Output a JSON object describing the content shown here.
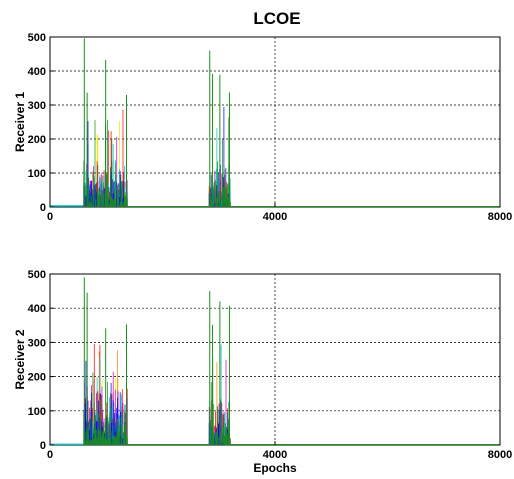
{
  "figure": {
    "title": "LCOE"
  },
  "series_colors": [
    "#1a8f1a",
    "#0000ff",
    "#ff0000",
    "#00bfbf",
    "#cc00cc",
    "#e8e800",
    "#ff8000",
    "#008000"
  ],
  "chart_data": [
    {
      "type": "line",
      "title": "LCOE",
      "xlabel": "",
      "ylabel": "Receiver 1",
      "xlim": [
        0,
        8000
      ],
      "ylim": [
        0,
        500
      ],
      "xticks": [
        0,
        4000,
        8000
      ],
      "yticks": [
        0,
        100,
        200,
        300,
        400,
        500
      ],
      "grid": true,
      "bursts": [
        {
          "x_start": 600,
          "x_end": 1380,
          "peak": 496,
          "typical_max": 150,
          "high_max": 300
        },
        {
          "x_start": 2830,
          "x_end": 3210,
          "peak": 460,
          "typical_max": 150,
          "high_max": 310
        }
      ],
      "baseline": {
        "x_start": 0,
        "x_end": 600,
        "value": 3
      }
    },
    {
      "type": "line",
      "title": "",
      "xlabel": "Epochs",
      "ylabel": "Receiver 2",
      "xlim": [
        0,
        8000
      ],
      "ylim": [
        0,
        500
      ],
      "xticks": [
        0,
        4000,
        8000
      ],
      "yticks": [
        0,
        100,
        200,
        300,
        400,
        500
      ],
      "grid": true,
      "bursts": [
        {
          "x_start": 600,
          "x_end": 1380,
          "peak": 490,
          "typical_max": 200,
          "high_max": 310
        },
        {
          "x_start": 2830,
          "x_end": 3210,
          "peak": 450,
          "typical_max": 160,
          "high_max": 300
        }
      ],
      "baseline": {
        "x_start": 0,
        "x_end": 600,
        "value": 2
      }
    }
  ]
}
